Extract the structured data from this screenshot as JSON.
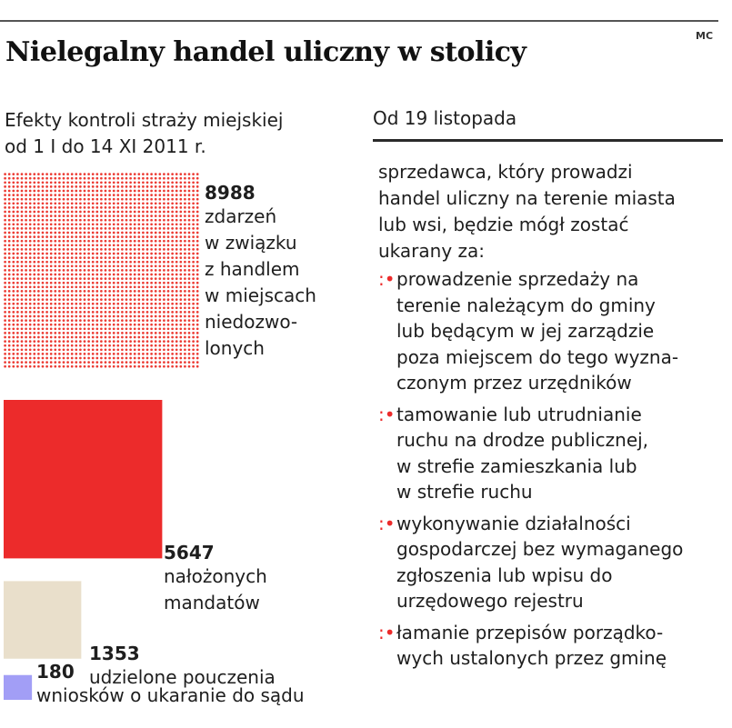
{
  "header": {
    "credit": "MC",
    "title": "Nielegalny handel uliczny w stolicy"
  },
  "left": {
    "subtitle": "Efekty kontroli straży miejskiej\nod 1 I do 14 XI 2011 r."
  },
  "chart_data": {
    "type": "area",
    "title": "Nielegalny handel uliczny w stolicy",
    "subtitle": "Efekty kontroli straży miejskiej od 1 I do 14 XI 2011 r.",
    "categories": [
      "zdarzeń w związku z handlem w miejscach niedozwolonych",
      "nałożonych mandatów",
      "udzielone pouczenia",
      "wniosków o ukaranie do sądu"
    ],
    "values": [
      8988,
      5647,
      1353,
      180
    ],
    "value_labels": [
      "8988",
      "5647",
      "1353",
      "180"
    ],
    "display_labels": [
      "zdarzeń\nw związku\nz handlem\nw miejscach\nniedozwo-\nlonych",
      "nałożonych\nmandatów",
      "udzielone pouczenia",
      "wniosków o ukaranie do sądu"
    ],
    "colors": [
      "#ec3b33",
      "#ec2b2b",
      "#e9dfcb",
      "#a29ef6"
    ],
    "styles": [
      "dotted",
      "solid",
      "solid",
      "solid"
    ]
  },
  "right": {
    "header": "Od 19 listopada",
    "intro": "sprzedawca, który prowadzi\nhandel uliczny na terenie miasta\nlub wsi, będzie mógł zostać\nukarany za:",
    "bullet_mark": ":•",
    "bullets": [
      "prowadzenie sprzedaży na\nterenie należącym do gminy\nlub będącym w jej zarządzie\npoza miejscem do tego wyzna-\nczonym przez urzędników",
      "tamowanie lub utrudnianie\nruchu na drodze publicznej,\nw strefie zamieszkania lub\nw strefie ruchu",
      "wykonywanie działalności\ngospodarczej bez wymaganego\nzgłoszenia lub wpisu do\nurzędowego rejestru",
      "łamanie przepisów porządko-\nwych ustalonych przez gminę"
    ]
  },
  "colors": {
    "accent": "#ec2b2b",
    "text": "#1e1e1e",
    "rule": "#2a2a2a"
  }
}
